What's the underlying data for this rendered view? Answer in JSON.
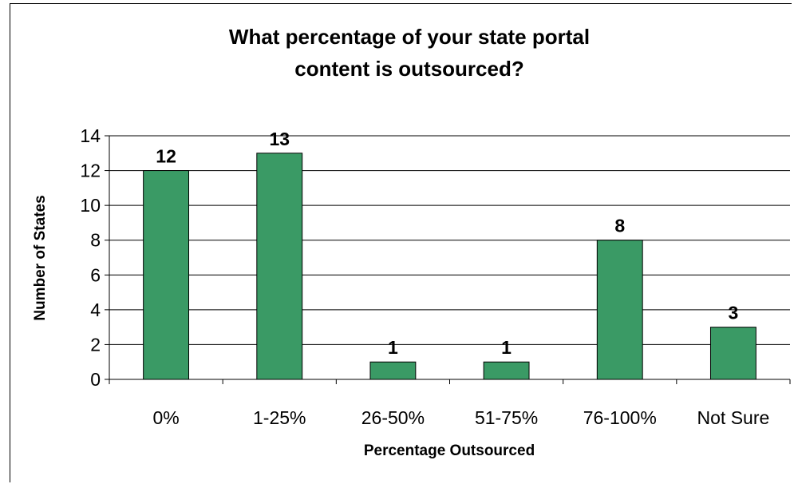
{
  "chart_data": {
    "type": "bar",
    "title_lines": [
      "What percentage of your state portal",
      "content is outsourced?"
    ],
    "xlabel": "Percentage Outsourced",
    "ylabel": "Number of States",
    "categories": [
      "0%",
      "1-25%",
      "26-50%",
      "51-75%",
      "76-100%",
      "Not Sure"
    ],
    "values": [
      12,
      13,
      1,
      1,
      8,
      3
    ],
    "data_labels": [
      "12",
      "13",
      "1",
      "1",
      "8",
      "3"
    ],
    "ylim": [
      0,
      14
    ],
    "yticks": [
      "0",
      "2",
      "4",
      "6",
      "8",
      "10",
      "12",
      "14"
    ],
    "grid": true,
    "bar_color": "#3a9a65",
    "legend": "none"
  }
}
